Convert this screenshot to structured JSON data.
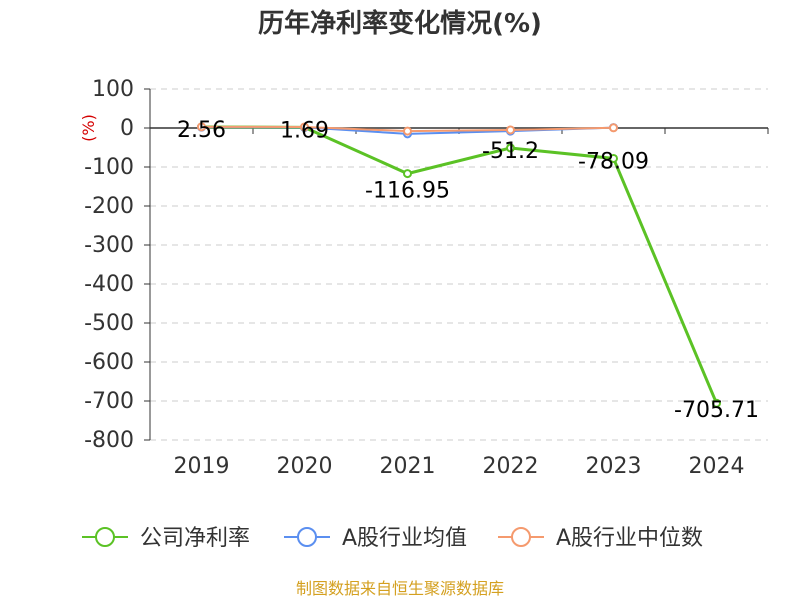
{
  "chart_data": {
    "type": "line",
    "title": "历年净利率变化情况(%)",
    "ylabel": "(%)",
    "xlabel": "",
    "categories": [
      "2019",
      "2020",
      "2021",
      "2022",
      "2023",
      "2024"
    ],
    "ylim": [
      -800,
      100
    ],
    "yticks": [
      100,
      0,
      -100,
      -200,
      -300,
      -400,
      -500,
      -600,
      -700,
      -800
    ],
    "grid": "horizontal dashed",
    "series": [
      {
        "name": "公司净利率",
        "color": "#5bc225",
        "values": [
          2.56,
          1.69,
          -116.95,
          -51.2,
          -78.09,
          -705.71
        ],
        "labels": [
          "2.56",
          "1.69",
          "-116.95",
          "-51.2",
          "-78.09",
          "-705.71"
        ]
      },
      {
        "name": "A股行业均值",
        "color": "#5b8ff0",
        "values": [
          2.2,
          1.5,
          -15,
          -8,
          1.0,
          null
        ]
      },
      {
        "name": "A股行业中位数",
        "color": "#f59a6e",
        "values": [
          3.0,
          2.6,
          -8,
          -5,
          0.5,
          null
        ]
      }
    ],
    "legend_position": "bottom"
  },
  "source": "制图数据来自恒生聚源数据库"
}
